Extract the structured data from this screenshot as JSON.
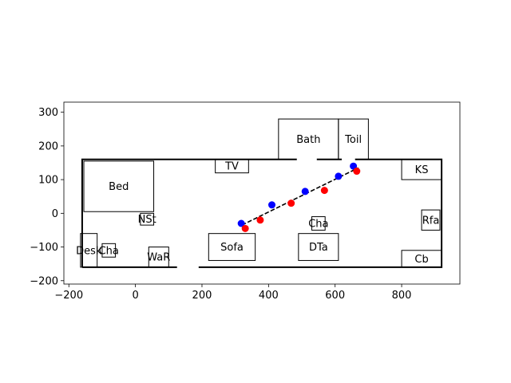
{
  "chart_data": {
    "type": "scatter",
    "title": "",
    "xlabel": "",
    "ylabel": "",
    "xlim": [
      -215,
      975
    ],
    "ylim": [
      -210,
      330
    ],
    "xticks": [
      -200,
      0,
      200,
      400,
      600,
      800
    ],
    "yticks": [
      -200,
      -100,
      0,
      100,
      200,
      300
    ],
    "grid": false,
    "legend": "none",
    "walls": {
      "outer": [
        [
          -160,
          -160
        ],
        [
          920,
          -160
        ],
        [
          920,
          160
        ],
        [
          -160,
          160
        ],
        [
          -160,
          -160
        ]
      ],
      "door_gaps": [
        {
          "x1": 125,
          "x2": 190,
          "y": -160
        },
        {
          "x1": 485,
          "x2": 545,
          "y": 160
        },
        {
          "x1": 620,
          "x2": 660,
          "y": 160
        }
      ]
    },
    "furniture": [
      {
        "label": "Bed",
        "x0": -155,
        "y0": 5,
        "x1": 55,
        "y1": 155
      },
      {
        "label": "TV",
        "x0": 240,
        "y0": 120,
        "x1": 340,
        "y1": 160
      },
      {
        "label": "Bath",
        "x0": 430,
        "y0": 160,
        "x1": 610,
        "y1": 280
      },
      {
        "label": "Toil",
        "x0": 610,
        "y0": 160,
        "x1": 700,
        "y1": 280
      },
      {
        "label": "KS",
        "x0": 800,
        "y0": 100,
        "x1": 920,
        "y1": 160
      },
      {
        "label": "NSt",
        "x0": 15,
        "y0": -35,
        "x1": 55,
        "y1": 0
      },
      {
        "label": "Rfa",
        "x0": 860,
        "y0": -50,
        "x1": 915,
        "y1": 10
      },
      {
        "label": "Cha",
        "x0": 530,
        "y0": -50,
        "x1": 570,
        "y1": -10
      },
      {
        "label": "Desk",
        "x0": -165,
        "y0": -160,
        "x1": -115,
        "y1": -60
      },
      {
        "label": "Cha",
        "x0": -100,
        "y0": -130,
        "x1": -60,
        "y1": -90
      },
      {
        "label": "WaR",
        "x0": 40,
        "y0": -160,
        "x1": 100,
        "y1": -100
      },
      {
        "label": "Sofa",
        "x0": 220,
        "y0": -140,
        "x1": 360,
        "y1": -60
      },
      {
        "label": "DTa",
        "x0": 490,
        "y0": -140,
        "x1": 610,
        "y1": -60
      },
      {
        "label": "Cb",
        "x0": 800,
        "y0": -160,
        "x1": 920,
        "y1": -110
      }
    ],
    "path": {
      "color": "#000000",
      "style": "dashed",
      "x": [
        320,
        670
      ],
      "y": [
        -35,
        135
      ]
    },
    "series": [
      {
        "color": "#0000ff",
        "x": [
          318,
          410,
          510,
          610,
          655
        ],
        "y": [
          -30,
          25,
          65,
          110,
          140
        ]
      },
      {
        "color": "#ff0000",
        "x": [
          330,
          375,
          468,
          568,
          665
        ],
        "y": [
          -45,
          -20,
          30,
          68,
          125
        ]
      }
    ]
  }
}
